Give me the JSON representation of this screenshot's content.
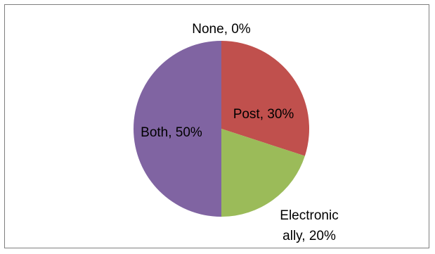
{
  "chart_data": {
    "type": "pie",
    "title": "",
    "slices": [
      {
        "label": "None",
        "value": 0,
        "display": "0%",
        "color": "#4F81BD"
      },
      {
        "label": "Post",
        "value": 30,
        "display": "30%",
        "color": "#C0504D"
      },
      {
        "label": "Electronically",
        "value": 20,
        "display": "20%",
        "color": "#9BBB59"
      },
      {
        "label": "Both",
        "value": 50,
        "display": "50%",
        "color": "#8064A2"
      }
    ],
    "data_labels": {
      "none": "None, 0%",
      "post": "Post, 30%",
      "electronic_line1": "Electronic",
      "electronic_line2": "ally, 20%",
      "both": "Both, 50%"
    },
    "legend": "none"
  }
}
